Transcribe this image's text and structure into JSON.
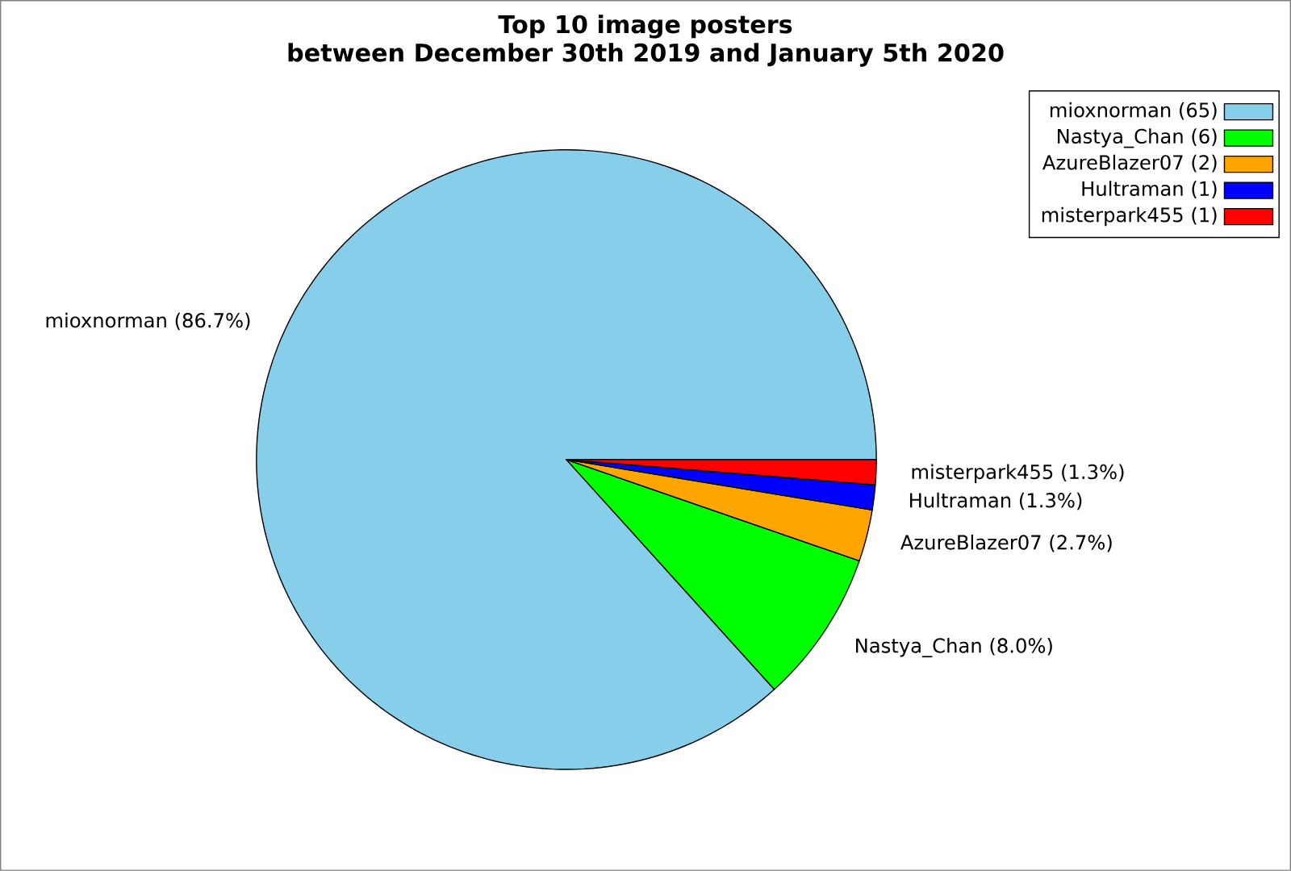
{
  "chart_data": {
    "type": "pie",
    "title": "Top 10 image posters",
    "subtitle": "between December 30th 2019 and January 5th 2020",
    "categories": [
      "mioxnorman (65)",
      "Nastya_Chan (6)",
      "AzureBlazer07 (2)",
      "Hultraman (1)",
      "misterpark455 (1)"
    ],
    "values": [
      86.7,
      8.0,
      2.7,
      1.3,
      1.3
    ],
    "colors": [
      "#87ceeb",
      "#00ff00",
      "#ffa500",
      "#0000ff",
      "#ff0000"
    ],
    "value_labels": [
      "mioxnorman (86.7%)",
      "Nastya_Chan (8.0%)",
      "AzureBlazer07 (2.7%)",
      "Hultraman (1.3%)",
      "misterpark455 (1.3%)"
    ],
    "legend": "top right"
  }
}
